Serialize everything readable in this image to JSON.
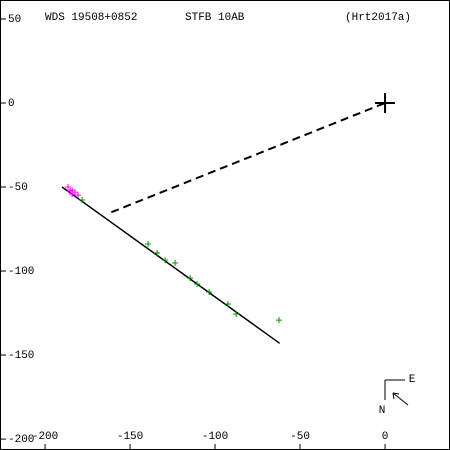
{
  "chart_data": {
    "type": "scatter",
    "title": "WDS 19508+0852",
    "subtitle": "STFB 10AB",
    "reference": "(Hrt2017a)",
    "xlim": [
      -226.5,
      38.2
    ],
    "ylim": [
      -206.5,
      61.3
    ],
    "xticks": [
      -200,
      -150,
      -100,
      -50,
      0
    ],
    "yticks": [
      50,
      0,
      -50,
      -100,
      -150,
      -200
    ],
    "compass": {
      "north": "N",
      "east": "E"
    },
    "series": [
      {
        "style": "line",
        "color": "#000000",
        "x": [
          -190,
          -62
        ],
        "y": [
          -50,
          -143
        ]
      },
      {
        "style": "dashed",
        "color": "#000000",
        "x": [
          -161,
          0
        ],
        "y": [
          -65,
          0
        ]
      },
      {
        "style": "plus",
        "color": "#009900",
        "x": [
          -178.2,
          -139.4,
          -134.1,
          -129.4,
          -123.5,
          -114.7,
          -110.6,
          -103.5,
          -92.4,
          -87.6,
          -62.4
        ],
        "y": [
          -57.7,
          -83.9,
          -89.3,
          -93.5,
          -95.2,
          -104.2,
          -107.7,
          -112.5,
          -119.6,
          -125.6,
          -129.2
        ]
      },
      {
        "style": "plus",
        "color": "#ff00ff",
        "x": [
          -186.5,
          -185.3,
          -184.1,
          -184.1,
          -182.4,
          -180.6
        ],
        "y": [
          -50,
          -52.4,
          -51.8,
          -54.2,
          -53,
          -54.8
        ]
      },
      {
        "style": "bigplus",
        "color": "#000000",
        "x": [
          0
        ],
        "y": [
          0
        ]
      }
    ]
  }
}
